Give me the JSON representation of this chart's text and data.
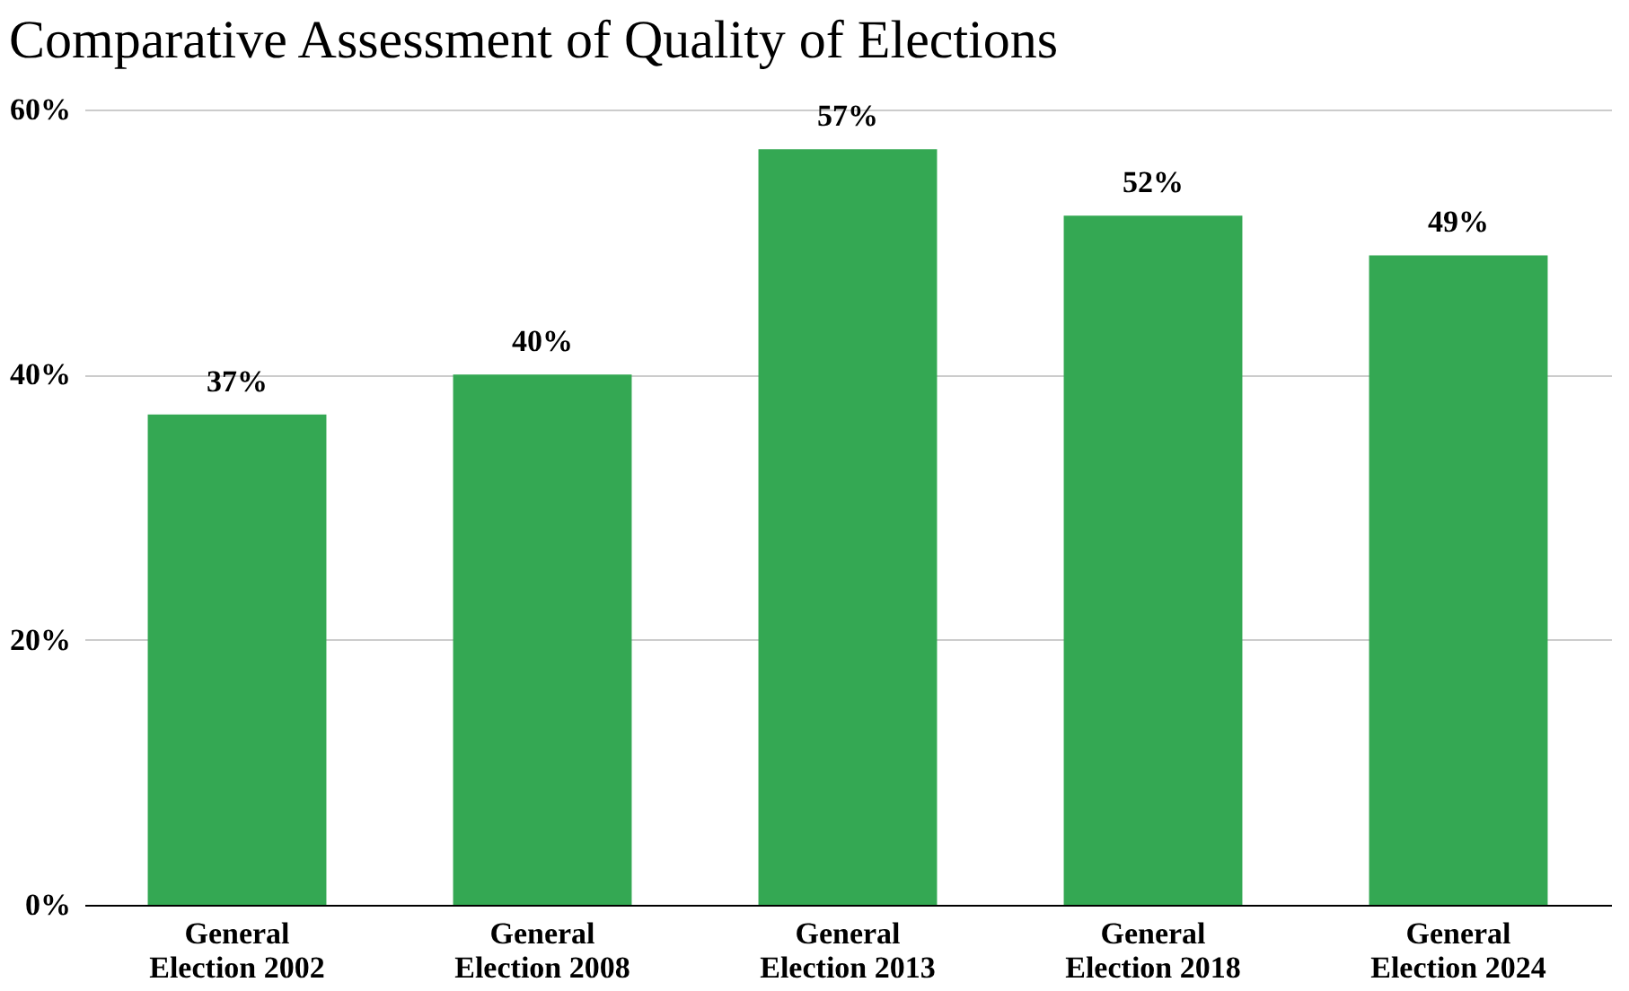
{
  "chart_data": {
    "type": "bar",
    "title": "Comparative Assessment of Quality of Elections",
    "categories": [
      "General Election 2002",
      "General Election 2008",
      "General Election 2013",
      "General Election 2018",
      "General Election 2024"
    ],
    "values": [
      37,
      40,
      57,
      52,
      49
    ],
    "value_labels": [
      "37%",
      "40%",
      "57%",
      "52%",
      "49%"
    ],
    "color": "#34a853",
    "ylim": [
      0,
      60
    ],
    "yticks": [
      {
        "value": 0,
        "label": "0%"
      },
      {
        "value": 20,
        "label": "20%"
      },
      {
        "value": 40,
        "label": "40%"
      },
      {
        "value": 60,
        "label": "60%"
      }
    ],
    "grid": "y"
  }
}
